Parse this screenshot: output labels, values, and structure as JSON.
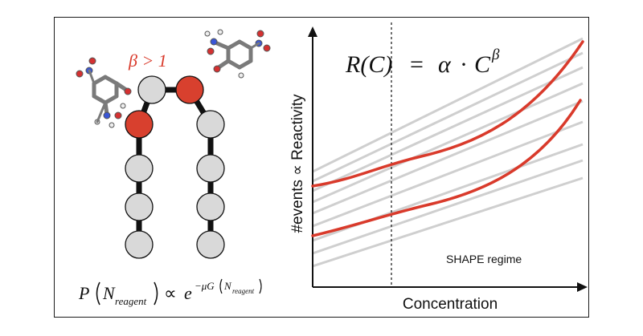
{
  "figure": {
    "left_panel": {
      "beta_label": "β > 1",
      "formula": {
        "p": "P",
        "n_reagent": "N",
        "reagent_sub": "reagent",
        "propto": "∝",
        "e": "e",
        "exponent": "−μG",
        "exp_n": "N",
        "exp_sub": "reagent"
      }
    },
    "right_panel": {
      "equation": {
        "lhs": "R(C)",
        "eq": "=",
        "alpha": "α",
        "dot": "·",
        "c": "C",
        "beta_exp": "β"
      },
      "ylabel": "#events ∝ Reactivity",
      "xlabel": "Concentration",
      "regime_label": "SHAPE regime"
    },
    "colors": {
      "accent_red": "#d93a2b",
      "node_red": "#d8402e",
      "node_gray": "#d9d9d9",
      "grid_gray": "#cfcfcf",
      "ink": "#111111"
    }
  }
}
